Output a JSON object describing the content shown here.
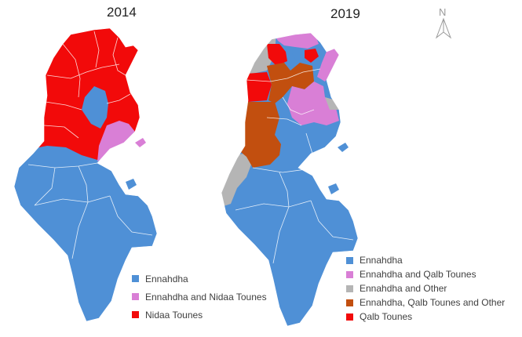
{
  "maps": [
    {
      "year": "2014",
      "legend": [
        {
          "label": "Ennahdha",
          "color": "#4f90d6"
        },
        {
          "label": "Ennahdha and Nidaa Tounes",
          "color": "#d97fd6"
        },
        {
          "label": "Nidaa Tounes",
          "color": "#f20a0a"
        }
      ]
    },
    {
      "year": "2019",
      "legend": [
        {
          "label": "Ennahdha",
          "color": "#4f90d6"
        },
        {
          "label": "Ennahdha and Qalb Tounes",
          "color": "#d97fd6"
        },
        {
          "label": "Ennahdha and Other",
          "color": "#b5b5b5"
        },
        {
          "label": "Ennahdha, Qalb Tounes and Other",
          "color": "#c24f0f"
        },
        {
          "label": "Qalb Tounes",
          "color": "#f20a0a"
        }
      ]
    }
  ],
  "compass": {
    "letter": "N",
    "icon": "north-arrow-icon"
  }
}
